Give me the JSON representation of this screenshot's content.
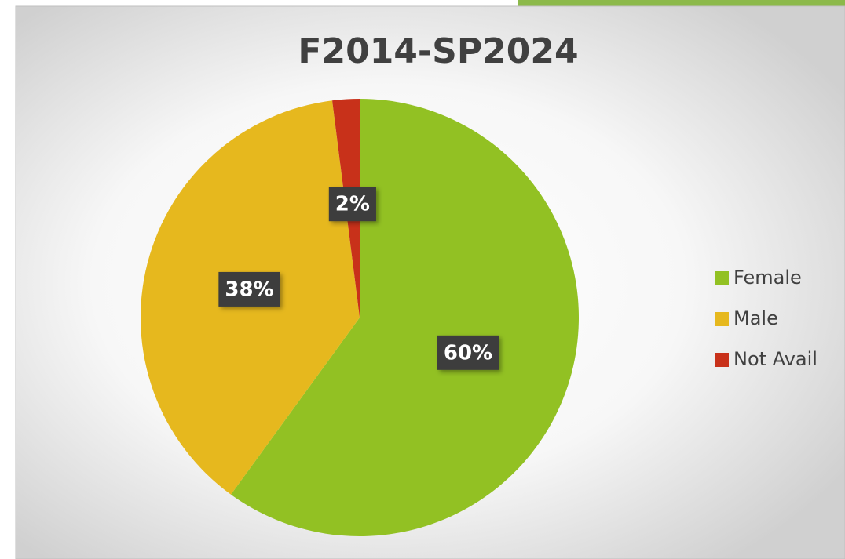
{
  "chart_data": {
    "type": "pie",
    "title": "F2014-SP2024",
    "categories": [
      "Female",
      "Male",
      "Not Avail"
    ],
    "values": [
      60,
      38,
      2
    ],
    "value_labels": [
      "60%",
      "38%",
      "2%"
    ],
    "colors": [
      "#92c123",
      "#e6b81e",
      "#c8311a"
    ],
    "legend": "right"
  }
}
